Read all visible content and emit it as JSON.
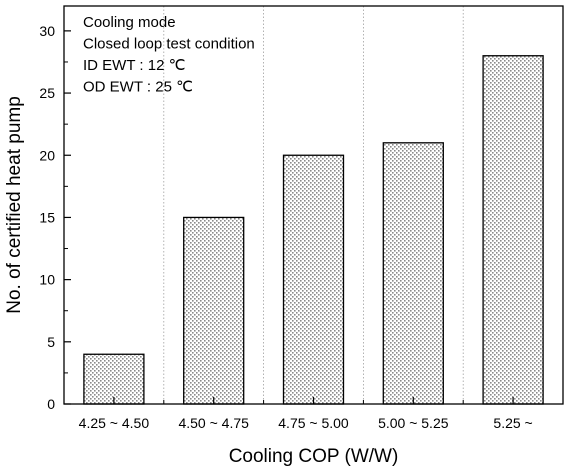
{
  "chart_data": {
    "type": "bar",
    "categories": [
      "4.25 ~ 4.50",
      "4.50 ~ 4.75",
      "4.75 ~ 5.00",
      "5.00 ~ 5.25",
      "5.25 ~"
    ],
    "values": [
      4,
      15,
      20,
      21,
      28
    ],
    "title": "",
    "xlabel": "Cooling COP (W/W)",
    "ylabel": "No. of certified heat pump",
    "ylim": [
      0,
      32
    ],
    "yticks": [
      0,
      5,
      10,
      15,
      20,
      25,
      30
    ],
    "grid": "vertical dotted separators between categories",
    "bar_fill": "dotted light gray",
    "colors": {
      "bar_fill": "#d9d9d9",
      "bar_stroke": "#000000",
      "grid": "#a0a0a0"
    },
    "annotations": [
      "Cooling mode",
      "Closed loop test condition",
      "ID   EWT :   12 ℃",
      "OD EWT :   25 ℃"
    ]
  }
}
